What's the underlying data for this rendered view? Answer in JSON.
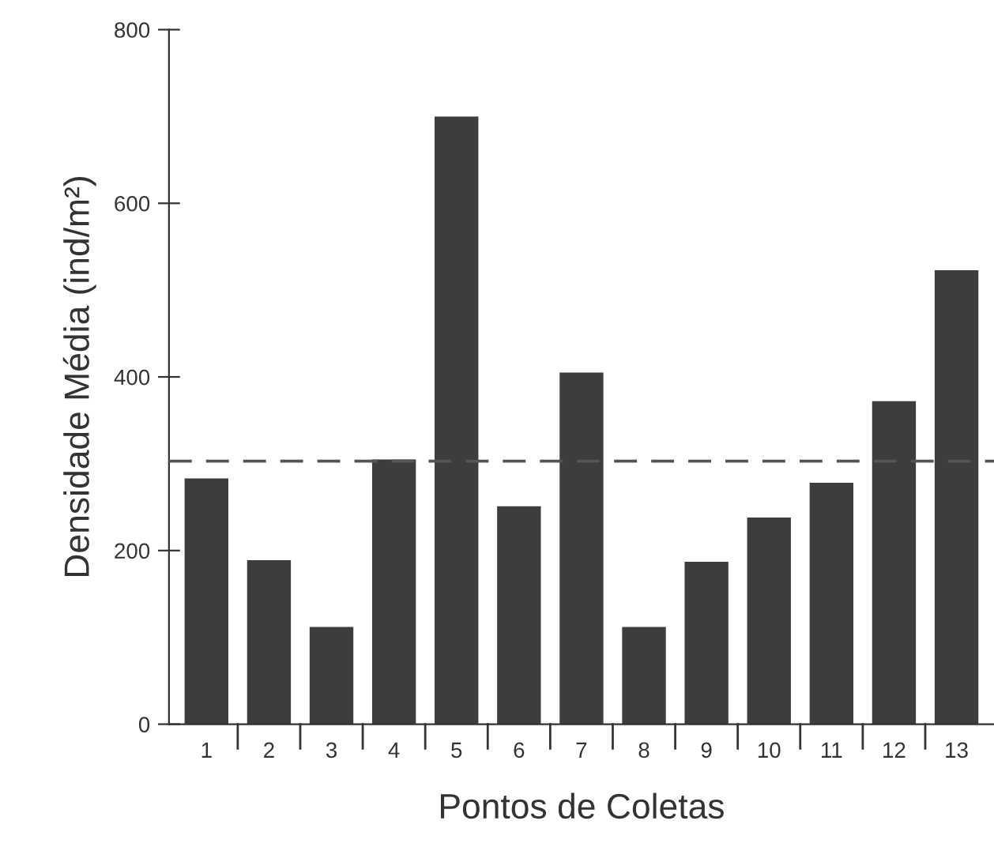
{
  "chart_data": {
    "type": "bar",
    "xlabel": "Pontos de Coletas",
    "ylabel": "Densidade Média (ind/m²)",
    "categories": [
      "1",
      "2",
      "3",
      "4",
      "5",
      "6",
      "7",
      "8",
      "9",
      "10",
      "11",
      "12",
      "13"
    ],
    "values": [
      283,
      189,
      112,
      305,
      700,
      251,
      405,
      112,
      187,
      238,
      278,
      372,
      523
    ],
    "color": "#3d3d3d",
    "ylim": [
      0,
      800
    ],
    "yticks": [
      0,
      200,
      400,
      600,
      800
    ],
    "grid": false,
    "ref_lines": [
      {
        "axis": "y",
        "value": 303,
        "line_style": "dashed",
        "color": "#555555"
      }
    ]
  }
}
